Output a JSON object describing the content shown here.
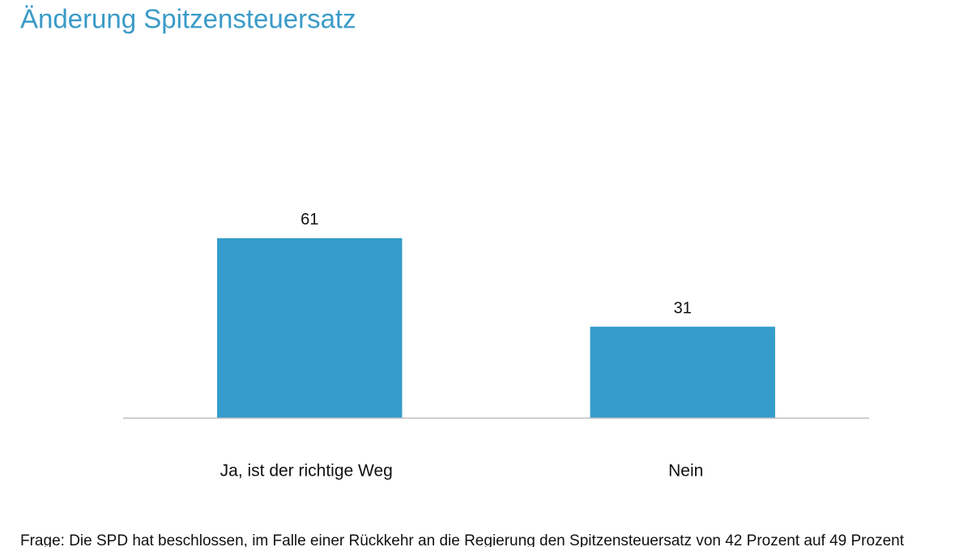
{
  "chart_data": {
    "type": "bar",
    "title": "Änderung Spitzensteuersatz",
    "categories": [
      "Ja, ist der richtige Weg",
      "Nein"
    ],
    "values": [
      61,
      31
    ],
    "color": "#359ccb",
    "ylim": [
      0,
      100
    ],
    "footnote": "Frage: Die SPD hat beschlossen, im Falle einer Rückkehr an die Regierung den Spitzensteuersatz von 42 Prozent auf 49 Prozent"
  }
}
